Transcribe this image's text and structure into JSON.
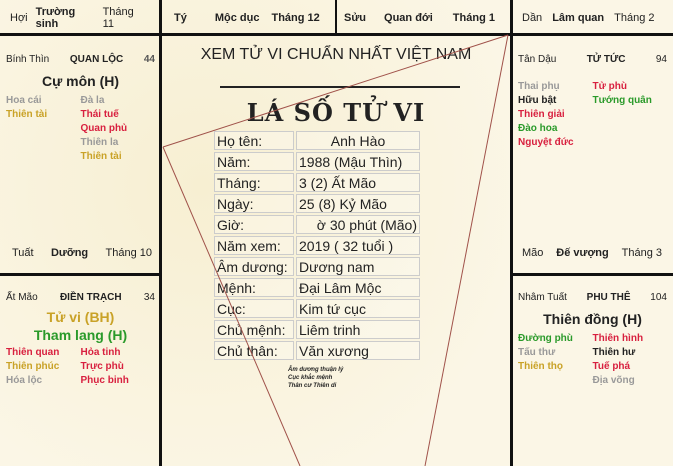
{
  "top_bar": [
    {
      "branch": "Hợi",
      "stage": "Trường sinh",
      "month": "Tháng 11"
    },
    {
      "branch": "Tý",
      "stage": "Mộc dục",
      "month": "Tháng 12"
    },
    {
      "branch": "Sửu",
      "stage": "Quan đới",
      "month": "Tháng 1"
    },
    {
      "branch": "Dần",
      "stage": "Lâm quan",
      "month": "Tháng 2"
    }
  ],
  "palaces": {
    "quan_loc": {
      "can_chi": "Bính Thìn",
      "name": "QUAN LỘC",
      "number": "44",
      "main": [
        "Cự môn (H)"
      ],
      "stars": [
        [
          "Hoa cái",
          "grey"
        ],
        [
          "Đà la",
          "grey"
        ],
        [
          "Thiên tài",
          "gold"
        ],
        [
          "Thái tuế",
          "red"
        ],
        [
          "",
          ""
        ],
        [
          "Quan phủ",
          "red"
        ],
        [
          "",
          ""
        ],
        [
          "Thiên la",
          "grey"
        ],
        [
          "",
          ""
        ],
        [
          "Thiên tài",
          "gold"
        ]
      ],
      "footer": {
        "branch": "Tuất",
        "stage": "Dưỡng",
        "month": "Tháng 10"
      }
    },
    "tu_tuc": {
      "can_chi": "Tân Dậu",
      "name": "TỬ TỨC",
      "number": "94",
      "stars": [
        [
          "Thai phụ",
          "grey"
        ],
        [
          "Tử phù",
          "red"
        ],
        [
          "Hữu bật",
          "black"
        ],
        [
          "Tướng quân",
          "green"
        ],
        [
          "Thiên giải",
          "red"
        ],
        [
          "",
          ""
        ],
        [
          "Đào hoa",
          "green"
        ],
        [
          "",
          ""
        ],
        [
          "Nguyệt đức",
          "red"
        ],
        [
          "",
          ""
        ]
      ],
      "footer": {
        "branch": "Mão",
        "stage": "Đế vượng",
        "month": "Tháng 3"
      }
    },
    "dien_trach": {
      "can_chi": "Ất Mão",
      "name": "ĐIỀN TRẠCH",
      "number": "34",
      "main": [
        "Tử vi (BH)",
        "Tham lang (H)"
      ],
      "stars": [
        [
          "Thiên quan",
          "red"
        ],
        [
          "Hỏa tinh",
          "red"
        ],
        [
          "Thiên phúc",
          "gold"
        ],
        [
          "Trực phù",
          "red"
        ],
        [
          "Hóa lộc",
          "grey"
        ],
        [
          "Phục binh",
          "red"
        ]
      ]
    },
    "phu_the": {
      "can_chi": "Nhâm Tuất",
      "name": "PHU THÊ",
      "number": "104",
      "main": [
        "Thiên đồng (H)"
      ],
      "stars": [
        [
          "Đường phù",
          "green"
        ],
        [
          "Thiên hình",
          "red"
        ],
        [
          "Tấu thư",
          "grey"
        ],
        [
          "Thiên hư",
          "black"
        ],
        [
          "Thiên thọ",
          "gold"
        ],
        [
          "Tuế phá",
          "red"
        ],
        [
          "",
          ""
        ],
        [
          "Địa võng",
          "grey"
        ]
      ]
    }
  },
  "center": {
    "site_title": "XEM TỬ VI CHUẨN NHẤT VIỆT NAM",
    "chart_title": "LÁ SỐ TỬ VI",
    "rows": [
      {
        "label": "Họ tên:",
        "value": "Anh Hào"
      },
      {
        "label": "Năm:",
        "value": "1988 (Mậu Thìn)"
      },
      {
        "label": "Tháng:",
        "value": "3 (2) Ất Mão"
      },
      {
        "label": "Ngày:",
        "value": "25 (8) Kỷ Mão"
      },
      {
        "label": "Giờ:",
        "value": "ờ 30 phút (Mão)"
      },
      {
        "label": "Năm xem:",
        "value": "2019 ( 32 tuổi )"
      },
      {
        "label": "Âm dương:",
        "value": "Dương nam"
      },
      {
        "label": "Mệnh:",
        "value": "Đại Lâm Mộc"
      },
      {
        "label": "Cục:",
        "value": "Kim tứ cục"
      },
      {
        "label": "Chủ mệnh:",
        "value": "Liêm trinh"
      },
      {
        "label": "Chủ thân:",
        "value": "Văn xương"
      }
    ],
    "notes": [
      "Âm dương thuận lý",
      "Cục khắc mệnh",
      "Thân cư Thiên di"
    ]
  },
  "colors": {
    "grey": "#999999",
    "gold": "#c9a227",
    "red": "#d8203f",
    "green": "#2a9a2a",
    "line": "#a0524a"
  }
}
